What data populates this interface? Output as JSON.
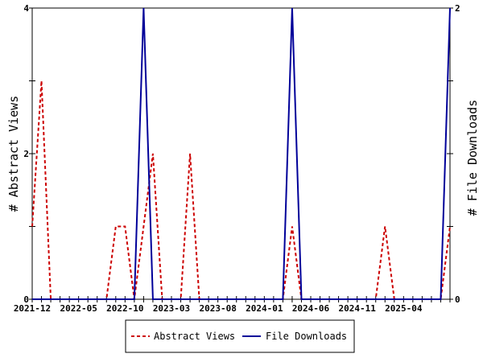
{
  "chart_data": {
    "type": "line",
    "x": [
      "2021-12",
      "2022-01",
      "2022-02",
      "2022-03",
      "2022-04",
      "2022-05",
      "2022-06",
      "2022-07",
      "2022-08",
      "2022-09",
      "2022-10",
      "2022-11",
      "2022-12",
      "2023-01",
      "2023-02",
      "2023-03",
      "2023-04",
      "2023-05",
      "2023-06",
      "2023-07",
      "2023-08",
      "2023-09",
      "2023-10",
      "2023-11",
      "2023-12",
      "2024-01",
      "2024-02",
      "2024-03",
      "2024-04",
      "2024-05",
      "2024-06",
      "2024-07",
      "2024-08",
      "2024-09",
      "2024-10",
      "2024-11",
      "2024-12",
      "2025-01",
      "2025-02",
      "2025-03",
      "2025-04",
      "2025-05",
      "2025-06",
      "2025-07",
      "2025-08",
      "2025-09"
    ],
    "x_tick_labels": [
      "2021-12",
      "2022-05",
      "2022-10",
      "2023-03",
      "2023-08",
      "2024-01",
      "2024-06",
      "2024-11",
      "2025-04"
    ],
    "series": [
      {
        "name": "Abstract Views",
        "axis": "left",
        "color": "#cc0000",
        "dash": "dashed",
        "values": [
          1,
          3,
          0,
          0,
          0,
          0,
          0,
          0,
          0,
          1,
          1,
          0,
          1,
          2,
          0,
          0,
          0,
          2,
          0,
          0,
          0,
          0,
          0,
          0,
          0,
          0,
          0,
          0,
          1,
          0,
          0,
          0,
          0,
          0,
          0,
          0,
          0,
          0,
          1,
          0,
          0,
          0,
          0,
          0,
          0,
          1
        ]
      },
      {
        "name": "File Downloads",
        "axis": "right",
        "color": "#000099",
        "dash": "solid",
        "values": [
          0,
          0,
          0,
          0,
          0,
          0,
          0,
          0,
          0,
          0,
          0,
          0,
          2,
          0,
          0,
          0,
          0,
          0,
          0,
          0,
          0,
          0,
          0,
          0,
          0,
          0,
          0,
          0,
          2,
          0,
          0,
          0,
          0,
          0,
          0,
          0,
          0,
          0,
          0,
          0,
          0,
          0,
          0,
          0,
          0,
          2
        ]
      }
    ],
    "ylabel_left": "# Abstract Views",
    "ylabel_right": "# File Downloads",
    "ylim_left": [
      0,
      4
    ],
    "ylim_right": [
      0,
      2
    ],
    "yticks_left": [
      "0",
      "2",
      "4"
    ],
    "yticks_right": [
      "0",
      "1",
      "2"
    ],
    "grid": false,
    "legend": {
      "placement": "bottom-center",
      "entries": [
        "Abstract Views",
        "File Downloads"
      ]
    }
  }
}
